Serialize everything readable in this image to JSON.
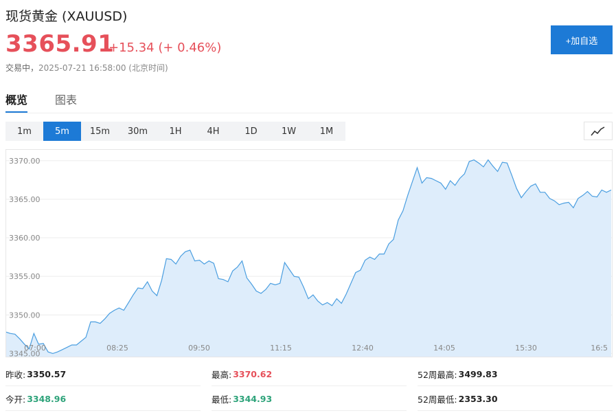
{
  "header": {
    "title": "现货黄金 (XAUUSD)",
    "price": "3365.91",
    "change": "+15.34 (+ 0.46%)",
    "status": "交易中，",
    "time": "2025-07-21 16:58:00 (北京时间)",
    "add_label": "+加自选"
  },
  "tabs": [
    "概览",
    "图表"
  ],
  "intervals": [
    "1m",
    "5m",
    "15m",
    "30m",
    "1H",
    "4H",
    "1D",
    "1W",
    "1M"
  ],
  "active_interval": "5m",
  "chart_toggle_icon": "line-chart-icon",
  "colors": {
    "up": "#e6505a",
    "down": "#2ea37a",
    "accent": "#1d7ad6",
    "line": "#4a9ee0",
    "area": "#deedfb"
  },
  "chart_data": {
    "type": "area",
    "y_ticks": [
      "3345.00",
      "3350.00",
      "3355.00",
      "3360.00",
      "3365.00",
      "3370.00"
    ],
    "x_ticks": [
      "07:00",
      "08:25",
      "09:50",
      "11:15",
      "12:40",
      "14:05",
      "15:30",
      "16:5"
    ],
    "ylim": [
      3344.5,
      3371.5
    ],
    "grid": true,
    "legend": "none",
    "series": [
      {
        "values": [
          3347.8,
          3347.6,
          3347.5,
          3346.9,
          3346.2,
          3345.6,
          3347.6,
          3346.2,
          3346.3,
          3345.2,
          3345.0,
          3345.2,
          3345.5,
          3345.8,
          3346.1,
          3346.1,
          3346.6,
          3347.1,
          3349.1,
          3349.1,
          3348.9,
          3349.5,
          3350.2,
          3350.6,
          3350.9,
          3350.6,
          3351.6,
          3352.6,
          3353.5,
          3353.4,
          3354.3,
          3353.1,
          3352.5,
          3354.5,
          3357.3,
          3357.2,
          3356.6,
          3357.6,
          3358.2,
          3358.4,
          3357.0,
          3357.1,
          3356.6,
          3357.0,
          3356.7,
          3354.7,
          3354.6,
          3354.3,
          3355.7,
          3356.2,
          3357.0,
          3354.8,
          3354.0,
          3353.1,
          3352.8,
          3353.3,
          3354.1,
          3353.9,
          3354.1,
          3356.8,
          3355.9,
          3355.0,
          3354.9,
          3353.6,
          3352.1,
          3352.6,
          3351.8,
          3351.3,
          3351.6,
          3351.2,
          3352.1,
          3351.5,
          3352.7,
          3354.1,
          3355.5,
          3355.8,
          3357.1,
          3357.5,
          3357.2,
          3357.9,
          3357.9,
          3359.2,
          3359.8,
          3362.3,
          3363.5,
          3365.5,
          3367.3,
          3369.1,
          3367.1,
          3367.8,
          3367.7,
          3367.4,
          3367.1,
          3366.3,
          3367.4,
          3366.8,
          3367.7,
          3368.3,
          3369.9,
          3370.1,
          3369.7,
          3369.2,
          3370.1,
          3369.3,
          3368.6,
          3369.8,
          3369.7,
          3368.1,
          3366.4,
          3365.2,
          3366.0,
          3366.7,
          3367.0,
          3365.9,
          3365.9,
          3365.1,
          3364.8,
          3364.3,
          3364.5,
          3364.6,
          3363.9,
          3365.1,
          3365.5,
          3366.0,
          3365.4,
          3365.3,
          3366.2,
          3365.9,
          3366.2
        ]
      }
    ]
  },
  "stats": {
    "prev_close": {
      "label": "昨收:",
      "value": "3350.57"
    },
    "open": {
      "label": "今开:",
      "value": "3348.96"
    },
    "high": {
      "label": "最高:",
      "value": "3370.62"
    },
    "low": {
      "label": "最低:",
      "value": "3344.93"
    },
    "high_52w": {
      "label": "52周最高:",
      "value": "3499.83"
    },
    "low_52w": {
      "label": "52周最低:",
      "value": "2353.30"
    }
  }
}
